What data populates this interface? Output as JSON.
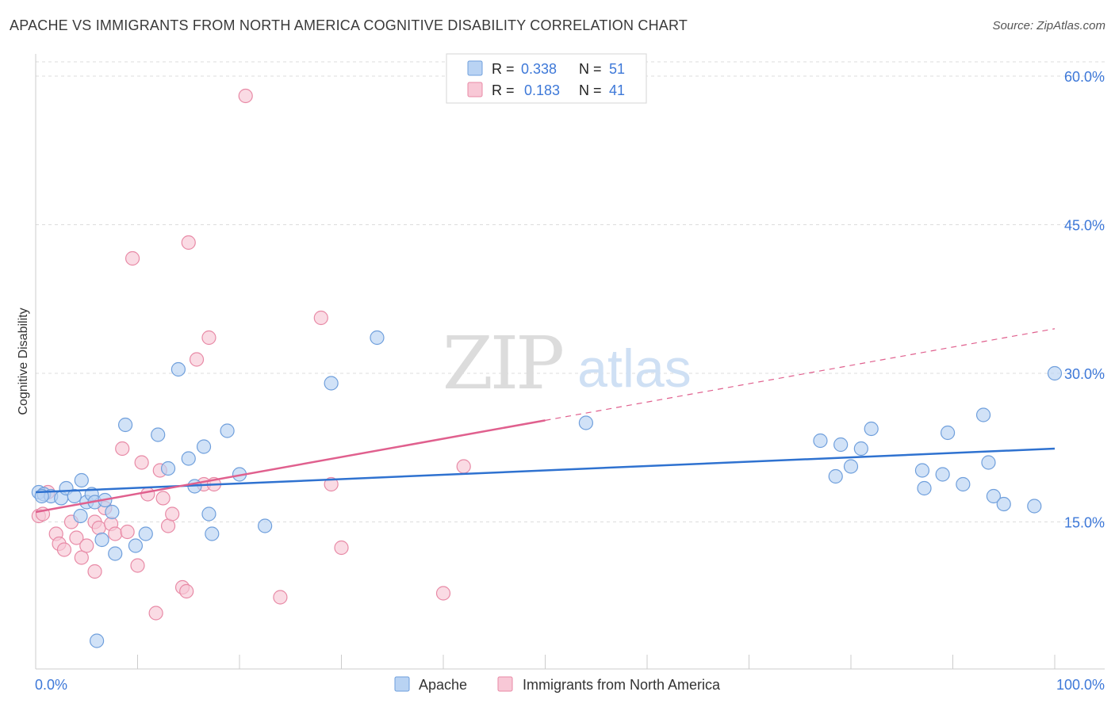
{
  "title": "APACHE VS IMMIGRANTS FROM NORTH AMERICA COGNITIVE DISABILITY CORRELATION CHART",
  "source": "Source: ZipAtlas.com",
  "watermark": {
    "zip": "ZIP",
    "atlas": "atlas"
  },
  "colors": {
    "apache_fill": "#b9d3f3",
    "apache_stroke": "#6f9fdc",
    "apache_line": "#2f72d0",
    "immig_fill": "#f8c8d6",
    "immig_stroke": "#e88aa6",
    "immig_line": "#e0608e",
    "tick_label": "#3d78d8",
    "grid": "#dddddd"
  },
  "legend_top": [
    {
      "r_label": "R =",
      "r_value": "0.338",
      "n_label": "N =",
      "n_value": "51"
    },
    {
      "r_label": "R =",
      "r_value": "0.183",
      "n_label": "N =",
      "n_value": "41"
    }
  ],
  "chart_data": {
    "type": "scatter",
    "title": "APACHE VS IMMIGRANTS FROM NORTH AMERICA COGNITIVE DISABILITY CORRELATION CHART",
    "xlabel": "",
    "ylabel": "Cognitive Disability",
    "xlim": [
      0,
      100
    ],
    "ylim": [
      0,
      60
    ],
    "x_tick_labels": [
      "0.0%",
      "100.0%"
    ],
    "y_ticks": [
      15,
      30,
      45,
      60
    ],
    "y_tick_labels": [
      "15.0%",
      "30.0%",
      "45.0%",
      "60.0%"
    ],
    "grid": true,
    "legend_position": "bottom-center",
    "series": [
      {
        "name": "Apache",
        "r": 0.338,
        "n": 51,
        "trend": {
          "x": [
            0,
            100
          ],
          "y": [
            18.0,
            22.4
          ],
          "dashed_after": null
        },
        "points": [
          [
            0.3,
            18.0
          ],
          [
            0.8,
            17.8
          ],
          [
            1.5,
            17.6
          ],
          [
            2.5,
            17.4
          ],
          [
            3.0,
            18.4
          ],
          [
            3.8,
            17.6
          ],
          [
            4.4,
            15.6
          ],
          [
            4.5,
            19.2
          ],
          [
            5.0,
            17.0
          ],
          [
            5.5,
            17.8
          ],
          [
            5.8,
            17.0
          ],
          [
            6.5,
            13.2
          ],
          [
            6.8,
            17.2
          ],
          [
            7.5,
            16.0
          ],
          [
            7.8,
            11.8
          ],
          [
            8.8,
            24.8
          ],
          [
            9.8,
            12.6
          ],
          [
            10.8,
            13.8
          ],
          [
            12.0,
            23.8
          ],
          [
            13.0,
            20.4
          ],
          [
            14.0,
            30.4
          ],
          [
            15.0,
            21.4
          ],
          [
            15.6,
            18.6
          ],
          [
            16.5,
            22.6
          ],
          [
            17.0,
            15.8
          ],
          [
            17.3,
            13.8
          ],
          [
            18.8,
            24.2
          ],
          [
            20.0,
            19.8
          ],
          [
            22.5,
            14.6
          ],
          [
            29.0,
            29.0
          ],
          [
            33.5,
            33.6
          ],
          [
            6.0,
            3.0
          ],
          [
            54.0,
            25.0
          ],
          [
            77.0,
            23.2
          ],
          [
            78.5,
            19.6
          ],
          [
            79.0,
            22.8
          ],
          [
            80.0,
            20.6
          ],
          [
            81.0,
            22.4
          ],
          [
            82.0,
            24.4
          ],
          [
            87.0,
            20.2
          ],
          [
            87.2,
            18.4
          ],
          [
            89.0,
            19.8
          ],
          [
            89.5,
            24.0
          ],
          [
            91.0,
            18.8
          ],
          [
            93.0,
            25.8
          ],
          [
            93.5,
            21.0
          ],
          [
            94.0,
            17.6
          ],
          [
            95.0,
            16.8
          ],
          [
            98.0,
            16.6
          ],
          [
            100.0,
            30.0
          ],
          [
            0.6,
            17.6
          ]
        ]
      },
      {
        "name": "Immigrants from North America",
        "r": 0.183,
        "n": 41,
        "trend": {
          "x": [
            0,
            100
          ],
          "y": [
            16.0,
            34.5
          ],
          "dashed_after": 50
        },
        "points": [
          [
            0.3,
            15.6
          ],
          [
            0.7,
            15.8
          ],
          [
            1.2,
            18.0
          ],
          [
            2.0,
            13.8
          ],
          [
            2.3,
            12.8
          ],
          [
            2.8,
            12.2
          ],
          [
            3.5,
            15.0
          ],
          [
            4.0,
            13.4
          ],
          [
            4.5,
            11.4
          ],
          [
            5.0,
            12.6
          ],
          [
            5.8,
            15.0
          ],
          [
            5.8,
            10.0
          ],
          [
            6.2,
            14.4
          ],
          [
            6.8,
            16.4
          ],
          [
            7.4,
            14.8
          ],
          [
            7.8,
            13.8
          ],
          [
            8.5,
            22.4
          ],
          [
            9.0,
            14.0
          ],
          [
            9.5,
            41.6
          ],
          [
            10.0,
            10.6
          ],
          [
            10.4,
            21.0
          ],
          [
            11.0,
            17.8
          ],
          [
            11.8,
            5.8
          ],
          [
            12.2,
            20.2
          ],
          [
            12.5,
            17.4
          ],
          [
            13.0,
            14.6
          ],
          [
            13.4,
            15.8
          ],
          [
            14.4,
            8.4
          ],
          [
            14.8,
            8.0
          ],
          [
            15.0,
            43.2
          ],
          [
            15.8,
            31.4
          ],
          [
            16.5,
            18.8
          ],
          [
            17.0,
            33.6
          ],
          [
            17.5,
            18.8
          ],
          [
            20.6,
            58.0
          ],
          [
            24.0,
            7.4
          ],
          [
            28.0,
            35.6
          ],
          [
            29.0,
            18.8
          ],
          [
            30.0,
            12.4
          ],
          [
            40.0,
            7.8
          ],
          [
            42.0,
            20.6
          ]
        ]
      }
    ]
  },
  "legend_bottom": [
    {
      "label": "Apache"
    },
    {
      "label": "Immigrants from North America"
    }
  ]
}
